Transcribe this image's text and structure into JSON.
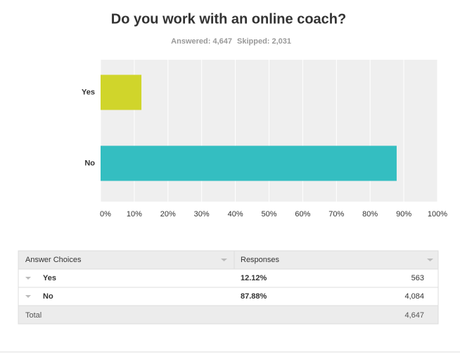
{
  "chart_data": {
    "type": "hbar",
    "title": "Do you work with an online coach?",
    "subtitle": [
      "Answered: 4,647",
      "Skipped: 2,031"
    ],
    "categories": [
      "Yes",
      "No"
    ],
    "values": [
      12.12,
      87.88
    ],
    "colors": [
      "#d0d52b",
      "#34bec1"
    ],
    "xlim": [
      0,
      100
    ],
    "xticks": [
      {
        "value": 0,
        "label": "0%"
      },
      {
        "value": 10,
        "label": "10%"
      },
      {
        "value": 20,
        "label": "20%"
      },
      {
        "value": 30,
        "label": "30%"
      },
      {
        "value": 40,
        "label": "40%"
      },
      {
        "value": 50,
        "label": "50%"
      },
      {
        "value": 60,
        "label": "60%"
      },
      {
        "value": 70,
        "label": "70%"
      },
      {
        "value": 80,
        "label": "80%"
      },
      {
        "value": 90,
        "label": "90%"
      },
      {
        "value": 100,
        "label": "100%"
      }
    ],
    "grid": true
  },
  "table": {
    "headers": [
      "Answer Choices",
      "Responses"
    ],
    "rows": [
      [
        "Yes",
        "12.12%",
        "563"
      ],
      [
        "No",
        "87.88%",
        "4,084"
      ]
    ],
    "total": [
      "Total",
      "4,647"
    ]
  }
}
